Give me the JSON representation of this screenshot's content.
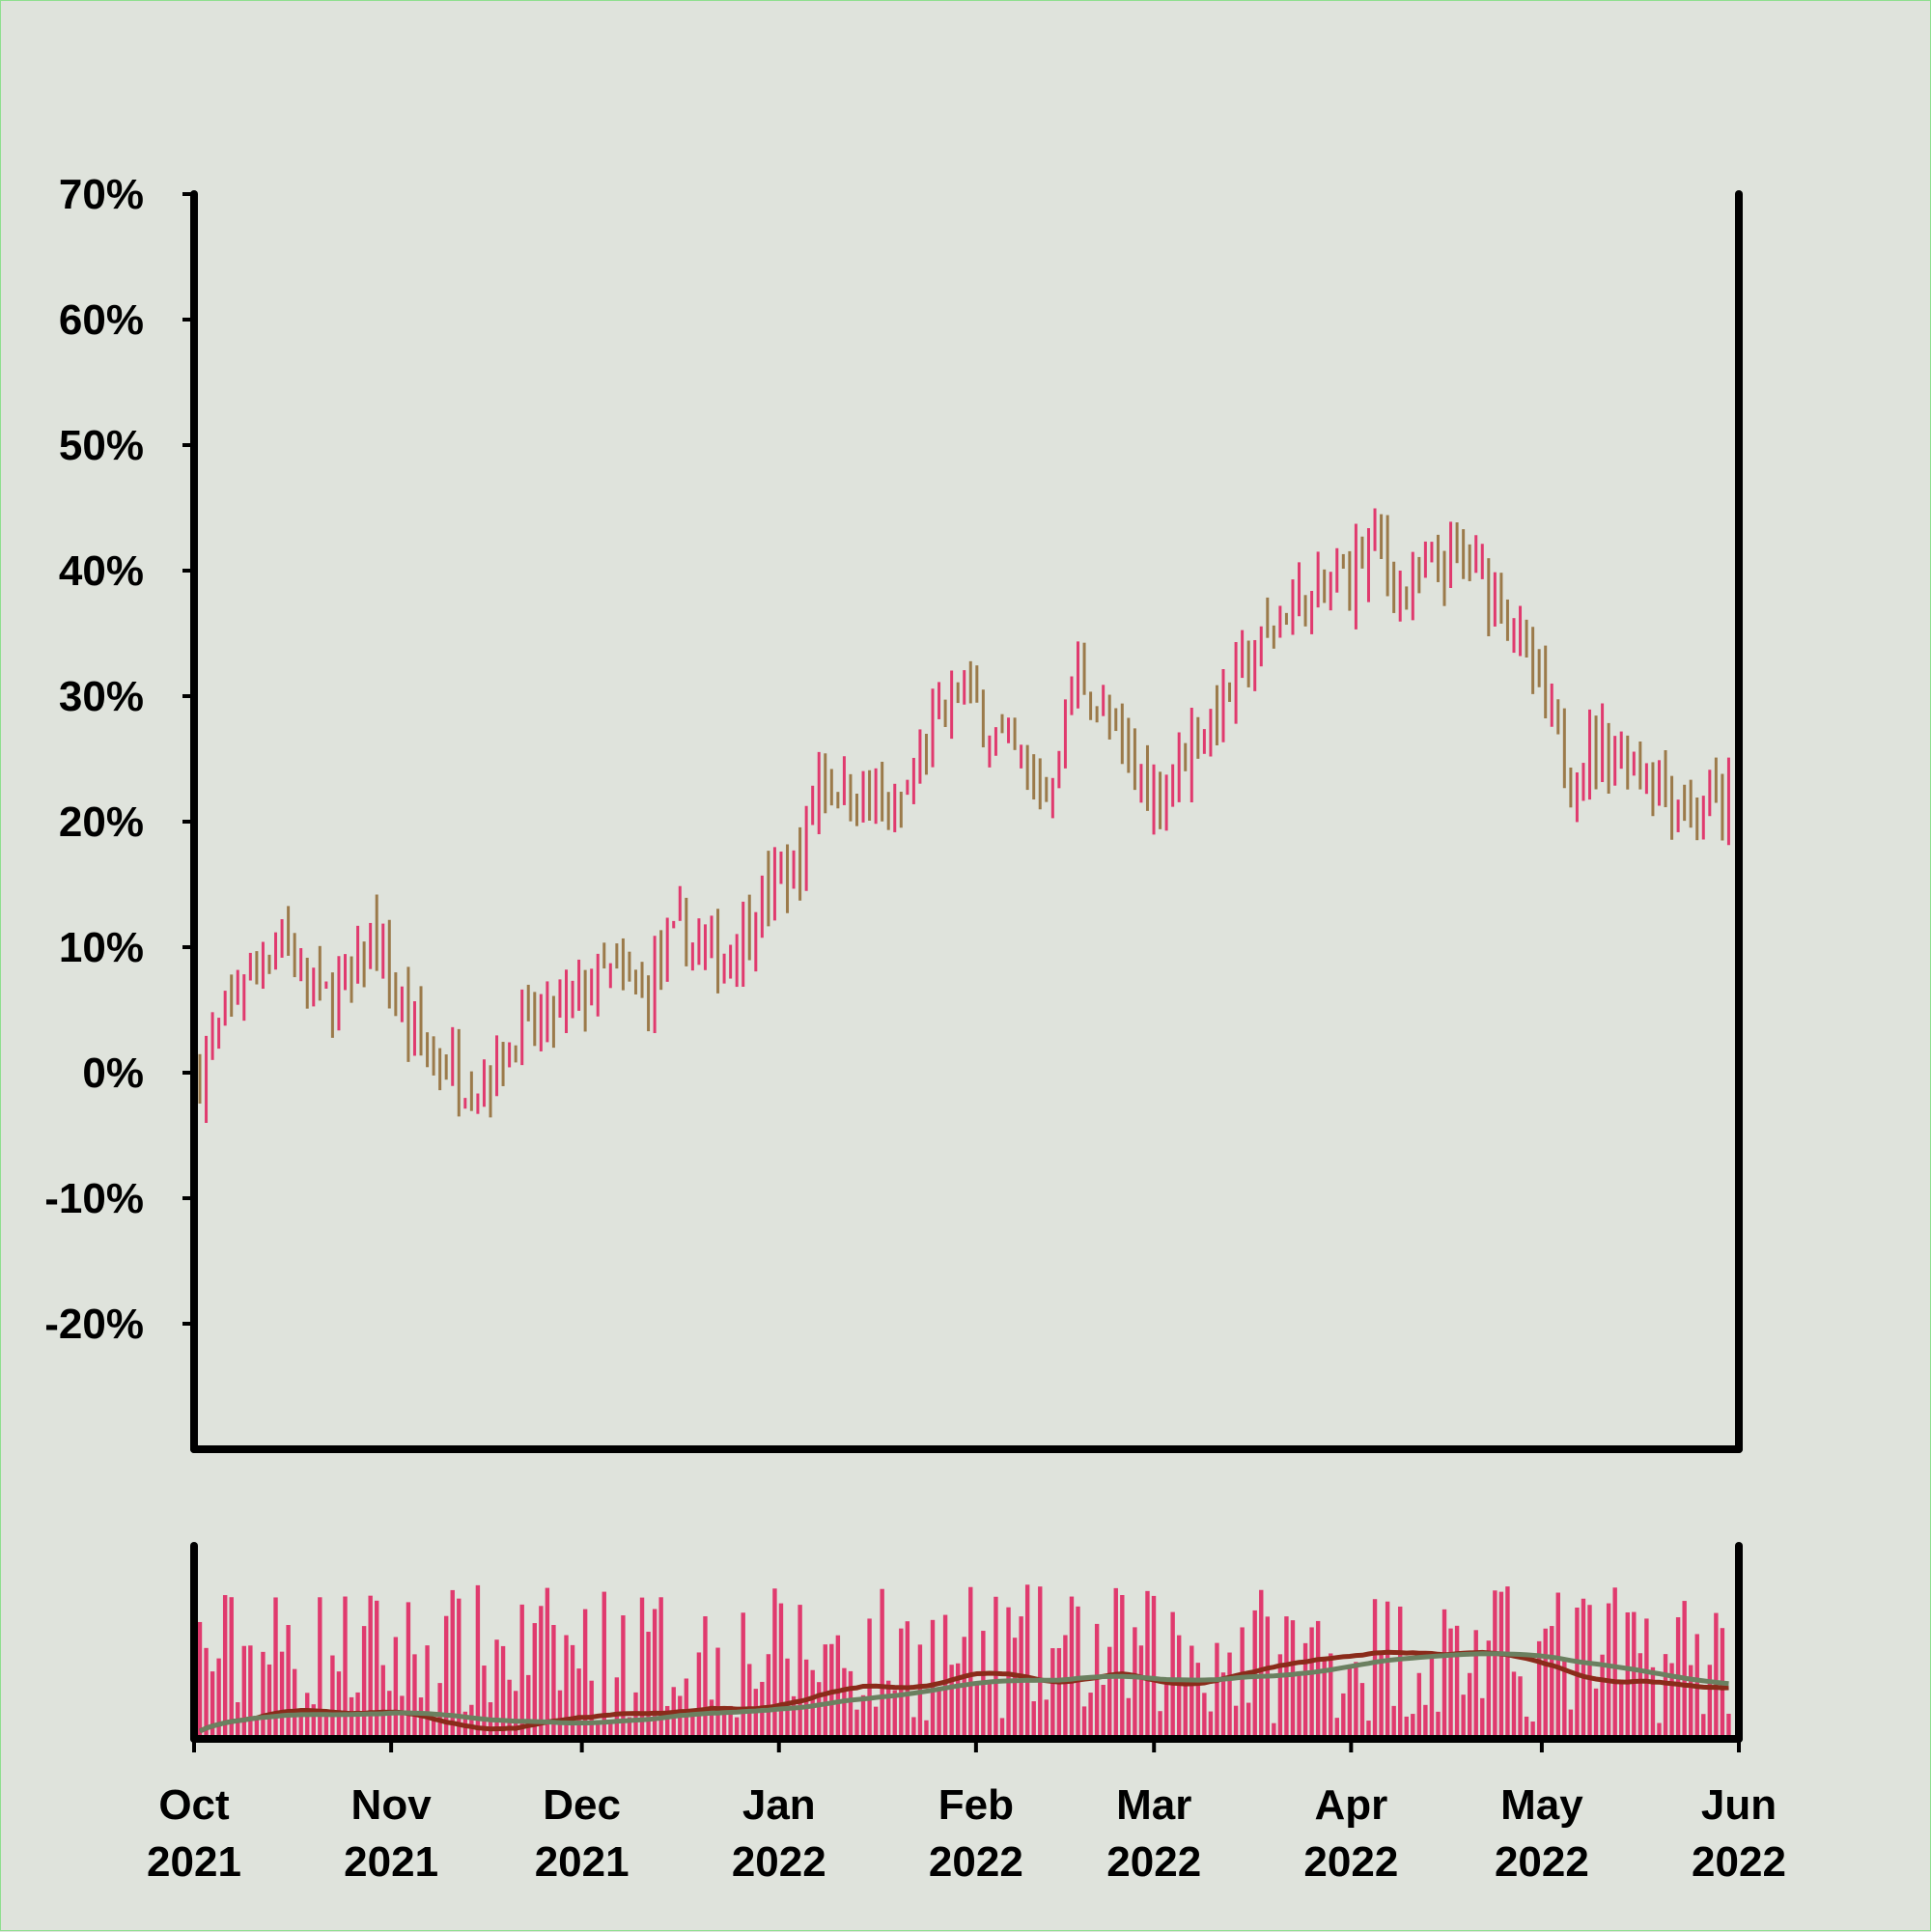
{
  "chart_data": [
    {
      "type": "ohlc",
      "title": "",
      "xlabel": "",
      "ylabel": "",
      "y_unit": "%",
      "ylim": [
        -30,
        70
      ],
      "y_ticks": [
        70,
        60,
        50,
        40,
        30,
        20,
        10,
        0,
        -10,
        -20
      ],
      "y_tick_labels": [
        "70%",
        "60%",
        "50%",
        "40%",
        "30%",
        "20%",
        "10%",
        "0%",
        "-10%",
        "-20%"
      ],
      "x_range": [
        "2021-10-01",
        "2022-06-01"
      ],
      "up_color": "#e03a6e",
      "down_color": "#9b7a4a",
      "close_anchors": [
        {
          "date": "2021-10-01",
          "close": 0
        },
        {
          "date": "2021-10-08",
          "close": 8
        },
        {
          "date": "2021-10-14",
          "close": 11
        },
        {
          "date": "2021-10-20",
          "close": 6
        },
        {
          "date": "2021-10-25",
          "close": 7
        },
        {
          "date": "2021-10-28",
          "close": 11
        },
        {
          "date": "2021-11-03",
          "close": 3
        },
        {
          "date": "2021-11-08",
          "close": 1
        },
        {
          "date": "2021-11-14",
          "close": -1
        },
        {
          "date": "2021-11-20",
          "close": 3
        },
        {
          "date": "2021-11-28",
          "close": 5
        },
        {
          "date": "2021-12-04",
          "close": 8
        },
        {
          "date": "2021-12-10",
          "close": 6
        },
        {
          "date": "2021-12-16",
          "close": 11
        },
        {
          "date": "2021-12-22",
          "close": 9
        },
        {
          "date": "2021-12-28",
          "close": 13
        },
        {
          "date": "2022-01-04",
          "close": 17
        },
        {
          "date": "2022-01-07",
          "close": 24
        },
        {
          "date": "2022-01-14",
          "close": 22
        },
        {
          "date": "2022-01-19",
          "close": 20
        },
        {
          "date": "2022-01-25",
          "close": 27
        },
        {
          "date": "2022-01-29",
          "close": 31
        },
        {
          "date": "2022-02-04",
          "close": 27
        },
        {
          "date": "2022-02-12",
          "close": 22
        },
        {
          "date": "2022-02-17",
          "close": 32
        },
        {
          "date": "2022-02-21",
          "close": 28
        },
        {
          "date": "2022-03-01",
          "close": 22
        },
        {
          "date": "2022-03-08",
          "close": 27
        },
        {
          "date": "2022-03-15",
          "close": 32
        },
        {
          "date": "2022-03-22",
          "close": 37
        },
        {
          "date": "2022-03-28",
          "close": 38
        },
        {
          "date": "2022-04-05",
          "close": 42
        },
        {
          "date": "2022-04-10",
          "close": 38
        },
        {
          "date": "2022-04-18",
          "close": 41
        },
        {
          "date": "2022-04-25",
          "close": 38
        },
        {
          "date": "2022-05-01",
          "close": 30
        },
        {
          "date": "2022-05-06",
          "close": 24
        },
        {
          "date": "2022-05-10",
          "close": 26
        },
        {
          "date": "2022-05-17",
          "close": 25
        },
        {
          "date": "2022-05-25",
          "close": 21
        },
        {
          "date": "2022-06-01",
          "close": 22
        }
      ]
    },
    {
      "type": "bar",
      "title": "",
      "ylabel": "",
      "bar_color": "#e03a6e",
      "moving_averages": [
        {
          "color": "#8a2b1a"
        },
        {
          "color": "#6b8060"
        }
      ],
      "x_ticks": [
        "2021-10-01",
        "2021-11-01",
        "2021-12-01",
        "2022-01-01",
        "2022-02-01",
        "2022-03-01",
        "2022-04-01",
        "2022-05-01",
        "2022-06-01"
      ],
      "x_tick_labels": [
        [
          "Oct",
          "2021"
        ],
        [
          "Nov",
          "2021"
        ],
        [
          "Dec",
          "2021"
        ],
        [
          "Jan",
          "2022"
        ],
        [
          "Feb",
          "2022"
        ],
        [
          "Mar",
          "2022"
        ],
        [
          "Apr",
          "2022"
        ],
        [
          "May",
          "2022"
        ],
        [
          "Jun",
          "2022"
        ]
      ]
    }
  ]
}
